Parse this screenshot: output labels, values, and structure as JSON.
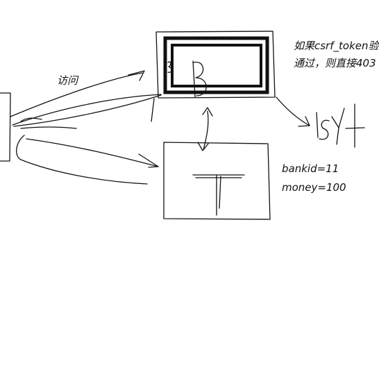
{
  "labels": {
    "visit": "访问",
    "csrf_line1": "如果csrf_token验",
    "csrf_line2": "通过，则直接403",
    "bankid": "bankid=11",
    "money": "money=100"
  },
  "handwritten": {
    "server_b": "B",
    "server_t": "T",
    "result": "isYt"
  },
  "colors": {
    "ink": "#111111",
    "background": "#ffffff"
  }
}
